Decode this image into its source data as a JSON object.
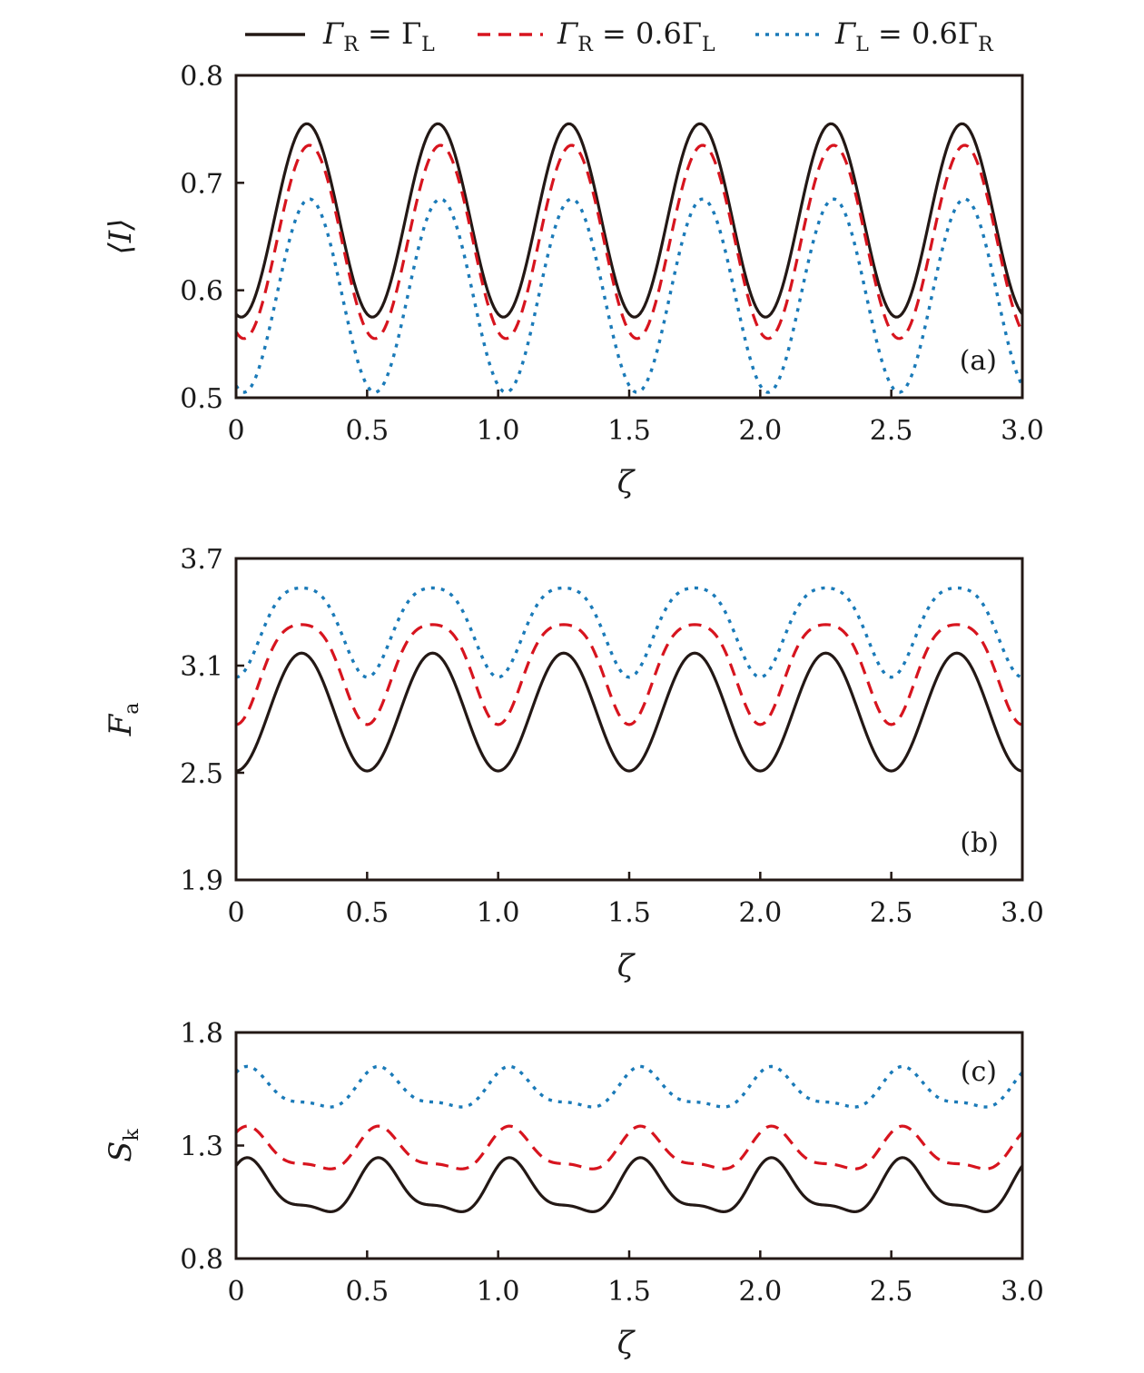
{
  "colors": {
    "solid": "#231815",
    "dashed": "#d7141e",
    "dotted": "#1a7ab8",
    "axis": "#231815"
  },
  "legend": [
    {
      "key": "s1",
      "label_main": "Γ",
      "sub1": "R",
      "middle": " = Γ",
      "sub2": "L",
      "style": "solid"
    },
    {
      "key": "s2",
      "label_main": "Γ",
      "sub1": "R",
      "middle": " = 0.6Γ",
      "sub2": "L",
      "style": "dashed"
    },
    {
      "key": "s3",
      "label_main": "Γ",
      "sub1": "L",
      "middle": " = 0.6Γ",
      "sub2": "R",
      "style": "dotted"
    }
  ],
  "chart_data": [
    {
      "type": "line",
      "panel_label": "(a)",
      "ylabel_main": "⟨I⟩",
      "ylabel_sub": "",
      "xlabel": "ζ",
      "xlim": [
        0,
        3.0
      ],
      "ylim": [
        0.5,
        0.8
      ],
      "xticks": [
        "0",
        "0.5",
        "1.0",
        "1.5",
        "2.0",
        "2.5",
        "3.0"
      ],
      "yticks": [
        "0.5",
        "0.6",
        "0.7",
        "0.8"
      ],
      "grid": false,
      "series": [
        {
          "style": "solid",
          "period": 0.5,
          "phase": 0.0,
          "model": "cos",
          "mean": 0.665,
          "amp": 0.09,
          "min_at": 0.02,
          "x_range": [
            0.0,
            3.0
          ],
          "y_at_peaks": 0.755,
          "y_at_troughs": 0.575
        },
        {
          "style": "dashed",
          "period": 0.5,
          "phase": 0.0,
          "model": "cos",
          "mean": 0.645,
          "amp": 0.09,
          "min_at": 0.03,
          "x_range": [
            0.0,
            3.0
          ],
          "y_at_peaks": 0.735,
          "y_at_troughs": 0.555
        },
        {
          "style": "dotted",
          "period": 0.5,
          "phase": 0.0,
          "model": "cos",
          "mean": 0.595,
          "amp": 0.09,
          "min_at": 0.03,
          "x_range": [
            0.0,
            3.0
          ],
          "y_at_peaks": 0.685,
          "y_at_troughs": 0.505
        }
      ]
    },
    {
      "type": "line",
      "panel_label": "(b)",
      "ylabel_main": "F",
      "ylabel_sub": "a",
      "xlabel": "ζ",
      "xlim": [
        0,
        3.0
      ],
      "ylim": [
        1.9,
        3.7
      ],
      "xticks": [
        "0",
        "0.5",
        "1.0",
        "1.5",
        "2.0",
        "2.5",
        "3.0"
      ],
      "yticks": [
        "1.9",
        "2.5",
        "3.1",
        "3.7"
      ],
      "grid": false,
      "series": [
        {
          "style": "solid",
          "period": 0.5,
          "model": "cos",
          "mean": 2.84,
          "amp": 0.33,
          "min_at": 0.0,
          "x_range": [
            0.0,
            3.0
          ],
          "y_at_peaks": 3.17,
          "y_at_troughs": 2.51
        },
        {
          "style": "dashed",
          "period": 0.5,
          "model": "double",
          "mean": 3.1,
          "amp": 0.28,
          "min_at": 0.0,
          "x_range": [
            0.0,
            3.0
          ],
          "y_at_peaks": 3.38,
          "y_at_troughs": 2.82
        },
        {
          "style": "dotted",
          "period": 0.5,
          "model": "double",
          "mean": 3.33,
          "amp": 0.25,
          "min_at": 0.0,
          "x_range": [
            0.0,
            3.0
          ],
          "y_at_peaks": 3.57,
          "y_at_troughs": 3.07
        }
      ]
    },
    {
      "type": "line",
      "panel_label": "(c)",
      "ylabel_main": "S",
      "ylabel_sub": "k",
      "xlabel": "ζ",
      "xlim": [
        0,
        3.0
      ],
      "ylim": [
        0.8,
        1.8
      ],
      "xticks": [
        "0",
        "0.5",
        "1.0",
        "1.5",
        "2.0",
        "2.5",
        "3.0"
      ],
      "yticks": [
        "0.8",
        "1.3",
        "1.8"
      ],
      "grid": false,
      "series": [
        {
          "style": "solid",
          "period": 0.5,
          "model": "skew",
          "mean": 1.1,
          "amp": 0.12,
          "x_range": [
            0.0,
            3.0
          ],
          "y_at_peaks": 1.22,
          "y_at_troughs": 0.98
        },
        {
          "style": "dashed",
          "period": 0.5,
          "model": "skew",
          "mean": 1.27,
          "amp": 0.095,
          "x_range": [
            0.0,
            3.0
          ],
          "y_at_peaks": 1.36,
          "y_at_troughs": 1.18
        },
        {
          "style": "dotted",
          "period": 0.5,
          "model": "skew",
          "mean": 1.54,
          "amp": 0.09,
          "x_range": [
            0.0,
            3.0
          ],
          "y_at_peaks": 1.63,
          "y_at_troughs": 1.45
        }
      ]
    }
  ]
}
